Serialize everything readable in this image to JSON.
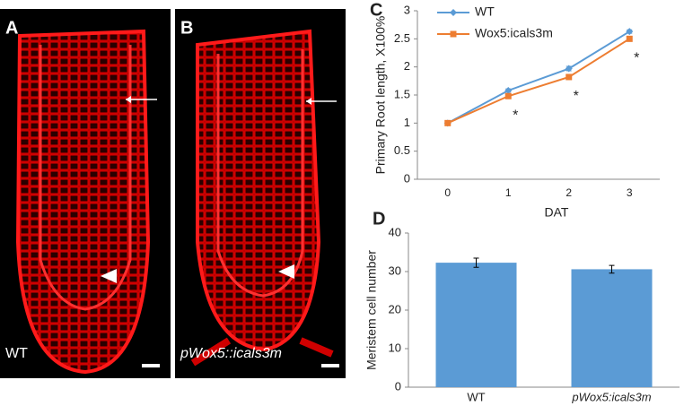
{
  "panels": [
    {
      "label": "A",
      "caption": "WT"
    },
    {
      "label": "B",
      "caption": "pWox5::icals3m"
    }
  ],
  "chart_data": [
    {
      "type": "line",
      "title": "C",
      "y_label": "Primary Root length, X100%",
      "x_label": "DAT",
      "x": [
        0,
        1,
        2,
        3
      ],
      "xlim": [
        -0.5,
        3.5
      ],
      "xticks": [
        0,
        1,
        2,
        3
      ],
      "ylim": [
        0,
        3
      ],
      "yticks": [
        0,
        0.5,
        1,
        1.5,
        2,
        2.5,
        3
      ],
      "legend": "upper left",
      "series": [
        {
          "name": "WT",
          "color": "#5b9bd5",
          "marker": "diamond",
          "values": [
            1,
            1.58,
            1.97,
            2.63
          ],
          "errors": [
            0.01,
            0.03,
            0.04,
            0.03
          ]
        },
        {
          "name": "Wox5:icals3m",
          "color": "#ed7d31",
          "marker": "square",
          "values": [
            1,
            1.48,
            1.82,
            2.5
          ],
          "errors": [
            0.01,
            0.03,
            0.04,
            0.04
          ]
        }
      ],
      "annotations": [
        {
          "x": 1,
          "text": "*"
        },
        {
          "x": 2,
          "text": "*"
        },
        {
          "x": 3,
          "text": "*"
        }
      ]
    },
    {
      "type": "bar",
      "title": "D",
      "y_label": "Meristem cell number",
      "categories": [
        "WT",
        "pWox5:icals3m"
      ],
      "values": [
        32.3,
        30.6
      ],
      "errors": [
        1.2,
        1.0
      ],
      "color": "#5b9bd5",
      "ylim": [
        0,
        40
      ],
      "yticks": [
        0,
        10,
        20,
        30,
        40
      ]
    }
  ]
}
